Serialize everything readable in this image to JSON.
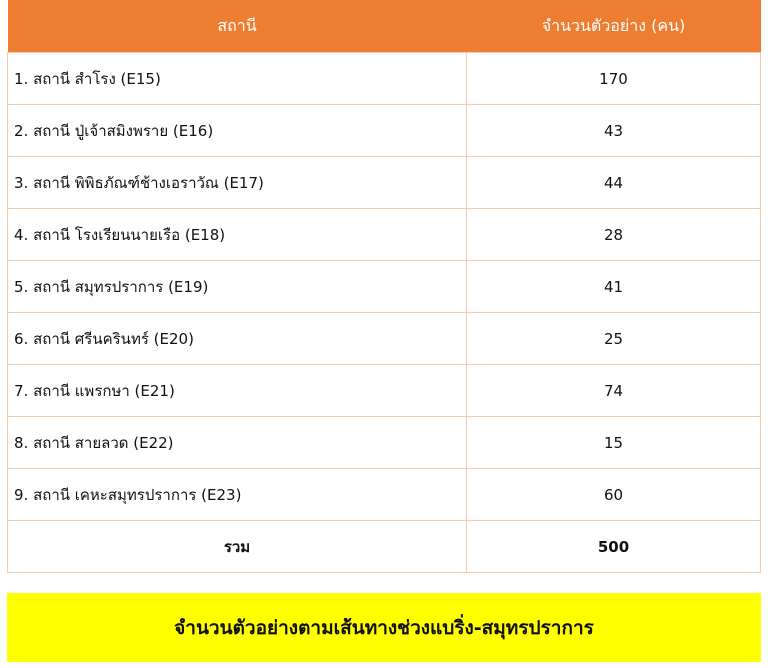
{
  "table": {
    "headers": [
      "สถานี",
      "จำนวนตัวอย่าง (คน)"
    ],
    "rows": [
      {
        "station": "1. สถานี สำโรง (E15)",
        "count": "170"
      },
      {
        "station": "2. สถานี ปู่เจ้าสมิงพราย (E16)",
        "count": "43"
      },
      {
        "station": "3. สถานี พิพิธภัณฑ์ช้างเอราวัณ (E17)",
        "count": "44"
      },
      {
        "station": "4. สถานี โรงเรียนนายเรือ (E18)",
        "count": "28"
      },
      {
        "station": "5. สถานี สมุทรปราการ  (E19)",
        "count": "41"
      },
      {
        "station": "6. สถานี ศรีนครินทร์  (E20)",
        "count": "25"
      },
      {
        "station": "7. สถานี แพรกษา (E21)",
        "count": "74"
      },
      {
        "station": "8. สถานี สายลวด (E22)",
        "count": "15"
      },
      {
        "station": "9. สถานี เคหะสมุทรปราการ (E23)",
        "count": "60"
      }
    ],
    "total_label": "รวม",
    "total_value": "500"
  },
  "caption": "จำนวนตัวอย่างตามเส้นทางช่วงแบริ่ง-สมุทรปราการ",
  "colors": {
    "header": "#ED7D31",
    "border": "#F8CBAD",
    "caption_bg": "#FFFF00"
  }
}
